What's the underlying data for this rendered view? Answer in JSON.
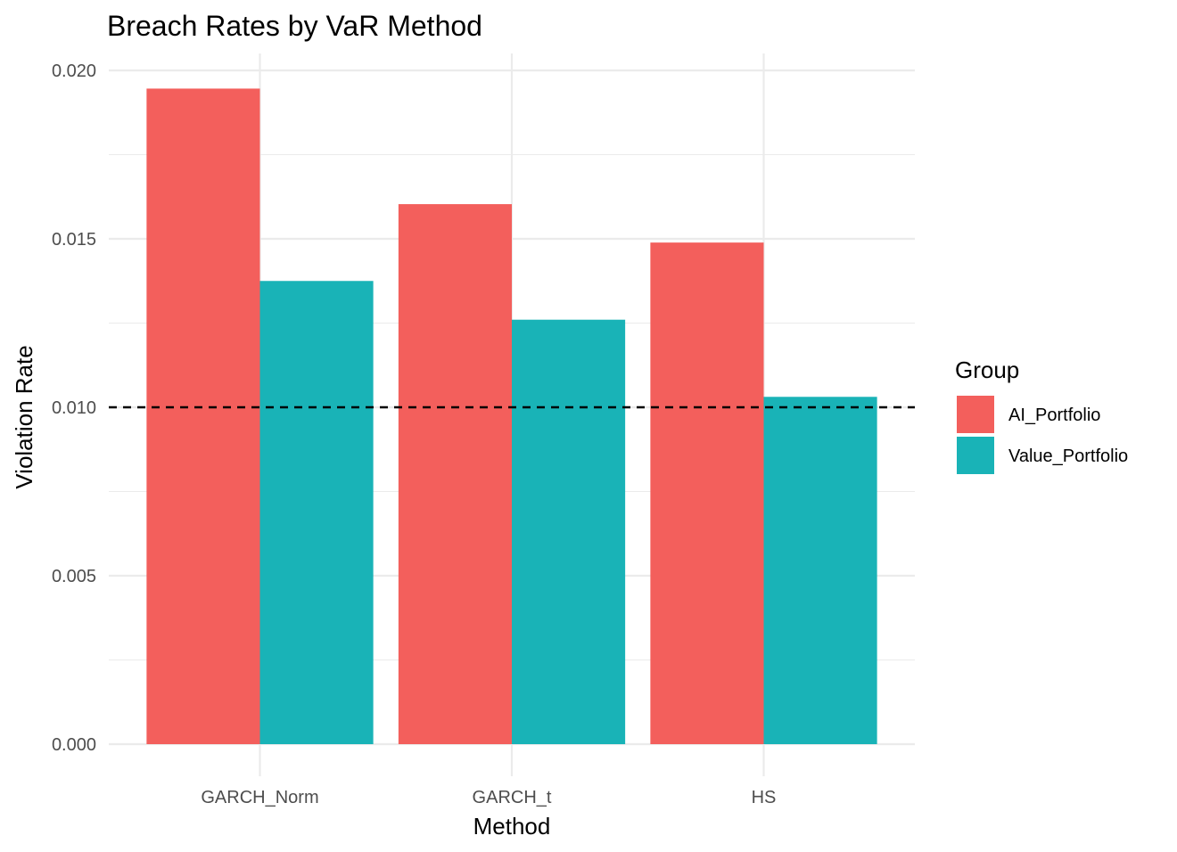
{
  "chart_data": {
    "type": "bar",
    "title": "Breach Rates by VaR Method",
    "xlabel": "Method",
    "ylabel": "Violation Rate",
    "categories": [
      "GARCH_Norm",
      "GARCH_t",
      "HS"
    ],
    "series": [
      {
        "name": "AI_Portfolio",
        "color": "#F35F5C",
        "values": [
          0.01946,
          0.01603,
          0.01489
        ]
      },
      {
        "name": "Value_Portfolio",
        "color": "#19B3B7",
        "values": [
          0.01375,
          0.0126,
          0.01031
        ]
      }
    ],
    "ylim": [
      0,
      0.0206
    ],
    "yticks": [
      "0.000",
      "0.005",
      "0.010",
      "0.015",
      "0.020"
    ],
    "ytick_values": [
      0,
      0.005,
      0.01,
      0.015,
      0.02
    ],
    "reference_line": {
      "y": 0.01,
      "style": "dashed",
      "color": "#000000"
    },
    "grid": true,
    "legend": {
      "title": "Group",
      "position": "right"
    }
  }
}
